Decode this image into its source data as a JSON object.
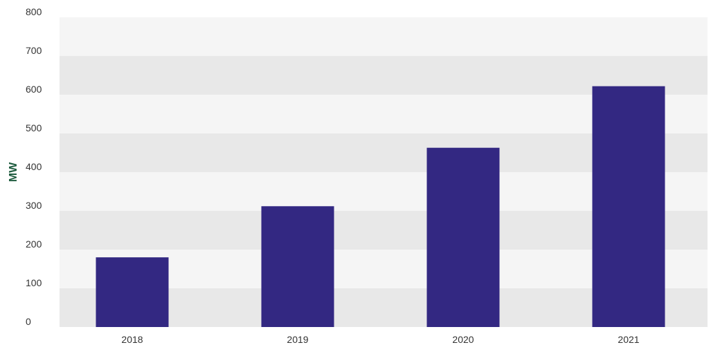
{
  "chart_data": {
    "type": "bar",
    "title": "",
    "xlabel": "",
    "ylabel": "MW",
    "categories": [
      "2018",
      "2019",
      "2020",
      "2021"
    ],
    "values": [
      180,
      312,
      463,
      622
    ],
    "ylim": [
      0,
      800
    ],
    "yticks": [
      0,
      100,
      200,
      300,
      400,
      500,
      600,
      700,
      800
    ],
    "grid": "alternating horizontal bands",
    "legend": "none",
    "colors": {
      "bar": "#332882",
      "band_light": "#f5f5f5",
      "band_dark": "#e8e8e8",
      "ylabel": "#1f5c3f",
      "tick_text": "#333333"
    }
  }
}
